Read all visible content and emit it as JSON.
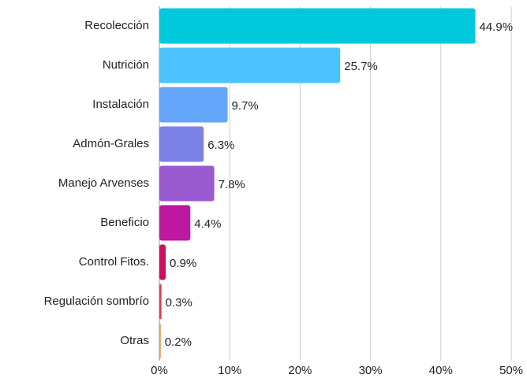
{
  "chart_data": {
    "type": "hbar",
    "categories": [
      "Recolección",
      "Nutrición",
      "Instalación",
      "Admón-Grales",
      "Manejo Arvenses",
      "Beneficio",
      "Control Fitos.",
      "Regulación sombrío",
      "Otras"
    ],
    "values": [
      44.9,
      25.7,
      9.7,
      6.3,
      7.8,
      4.4,
      0.9,
      0.3,
      0.2
    ],
    "value_labels": [
      "44.9%",
      "25.7%",
      "9.7%",
      "6.3%",
      "7.8%",
      "4.4%",
      "0.9%",
      "0.3%",
      "0.2%"
    ],
    "colors": [
      "#00c9db",
      "#4cc3fc",
      "#63a6fa",
      "#7c82e6",
      "#9b5bd0",
      "#bd189f",
      "#cf0f5e",
      "#d8414a",
      "#e79a5c"
    ],
    "xlim": [
      0,
      50
    ],
    "xticks": [
      {
        "value": 0,
        "label": "0%"
      },
      {
        "value": 10,
        "label": "10%"
      },
      {
        "value": 20,
        "label": "20%"
      },
      {
        "value": 30,
        "label": "30%"
      },
      {
        "value": 40,
        "label": "40%"
      },
      {
        "value": 50,
        "label": "50%"
      }
    ],
    "grid": true
  }
}
